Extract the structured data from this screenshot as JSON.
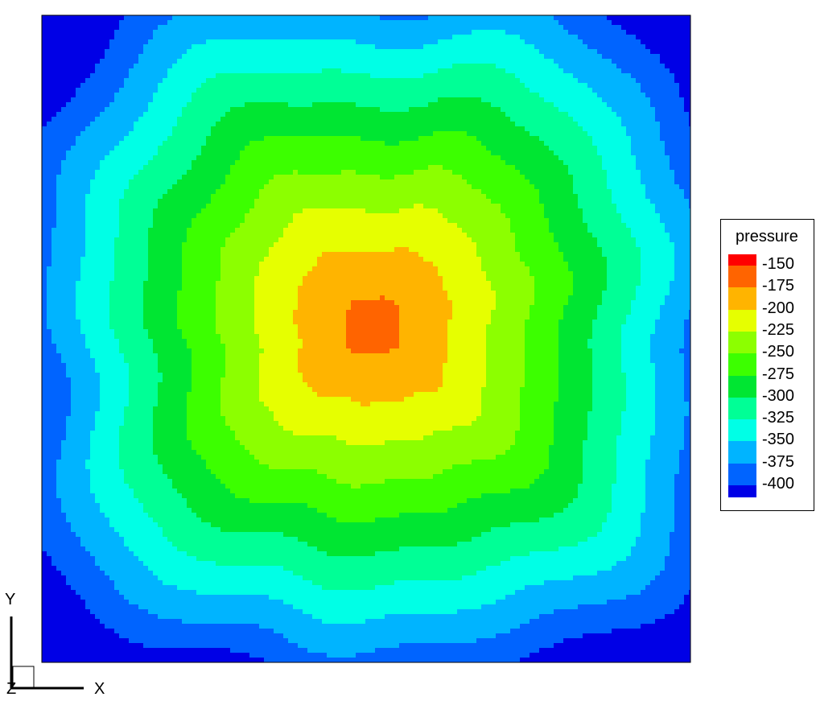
{
  "chart_data": {
    "type": "contour",
    "variable": "pressure",
    "legend": {
      "title": "pressure",
      "levels": [
        -150,
        -175,
        -200,
        -225,
        -250,
        -275,
        -300,
        -325,
        -350,
        -375,
        -400
      ],
      "labels": [
        "-150",
        "-175",
        "-200",
        "-225",
        "-250",
        "-275",
        "-300",
        "-325",
        "-350",
        "-375",
        "-400"
      ],
      "colors": [
        "#ff0000",
        "#ff6400",
        "#ffb400",
        "#e6ff00",
        "#8cff00",
        "#3cff00",
        "#00e632",
        "#00ff96",
        "#00ffe6",
        "#00b4ff",
        "#0064ff",
        "#0000e6"
      ]
    },
    "field": {
      "description_levels": "filled contour of pressure over square domain; center near -175, decreasing toward edges to about -400",
      "center_value": -165,
      "edge_value": -380,
      "x_range": [
        0,
        1
      ],
      "y_range": [
        0,
        1
      ]
    },
    "axes": {
      "x_label": "X",
      "y_label": "Y",
      "z_label": "Z"
    }
  }
}
